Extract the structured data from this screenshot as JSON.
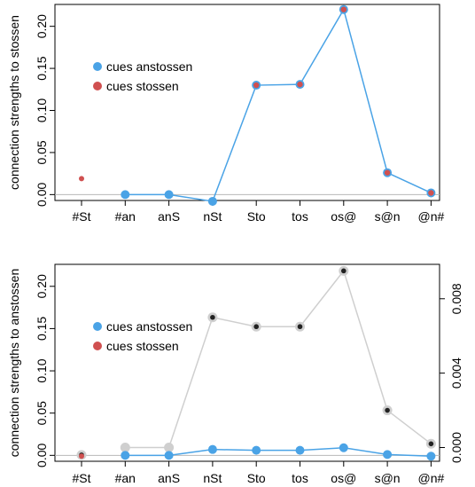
{
  "colors": {
    "anstossen": "#4aa3e6",
    "stossen": "#d05050",
    "gray": "#cfcfcf",
    "black_marker": "#222222",
    "baseline": "#b8b8b8"
  },
  "chart_data": [
    {
      "type": "line",
      "ylabel": "connection strengths to stossen",
      "categories": [
        "#St",
        "#an",
        "anS",
        "nSt",
        "Sto",
        "tos",
        "os@",
        "s@n",
        "@n#"
      ],
      "yticks": [
        "0.00",
        "0.05",
        "0.10",
        "0.15",
        "0.20"
      ],
      "ylim": [
        -0.007,
        0.226
      ],
      "legend": {
        "position": "top-left",
        "entries": [
          {
            "key": "anstossen",
            "label": "cues anstossen"
          },
          {
            "key": "stossen",
            "label": "cues stossen"
          }
        ]
      },
      "series": [
        {
          "key": "anstossen",
          "values": [
            null,
            0.0,
            0.0,
            -0.008,
            0.13,
            0.131,
            0.22,
            0.026,
            0.002
          ]
        },
        {
          "key": "stossen",
          "values": [
            0.019,
            null,
            null,
            null,
            0.13,
            0.131,
            0.22,
            0.026,
            0.002
          ]
        }
      ]
    },
    {
      "type": "line",
      "ylabel": "connection strengths to anstossen",
      "categories": [
        "#St",
        "#an",
        "anS",
        "nSt",
        "Sto",
        "tos",
        "os@",
        "s@n",
        "@n#"
      ],
      "yticks": [
        "0.00",
        "0.05",
        "0.10",
        "0.15",
        "0.20"
      ],
      "ylim": [
        -0.007,
        0.226
      ],
      "y2ticks": [
        "0.000",
        "0.004",
        "0.008"
      ],
      "y2lim": [
        -0.00074,
        0.00985
      ],
      "legend": {
        "position": "top-left",
        "entries": [
          {
            "key": "anstossen",
            "label": "cues anstossen"
          },
          {
            "key": "stossen",
            "label": "cues stossen"
          }
        ]
      },
      "series": [
        {
          "key": "anstossen",
          "values": [
            null,
            0.0,
            0.0,
            0.007,
            0.006,
            0.006,
            0.009,
            0.001,
            -0.001
          ]
        },
        {
          "key": "stossen",
          "values": [
            -0.001,
            null,
            null,
            null,
            null,
            null,
            null,
            null,
            null
          ]
        }
      ],
      "secondary_series": [
        {
          "key": "gray_scaled",
          "values": [
            -0.0004,
            0.0,
            0.0,
            0.007,
            0.0065,
            0.0065,
            0.0095,
            0.002,
            0.0002
          ]
        }
      ]
    }
  ]
}
